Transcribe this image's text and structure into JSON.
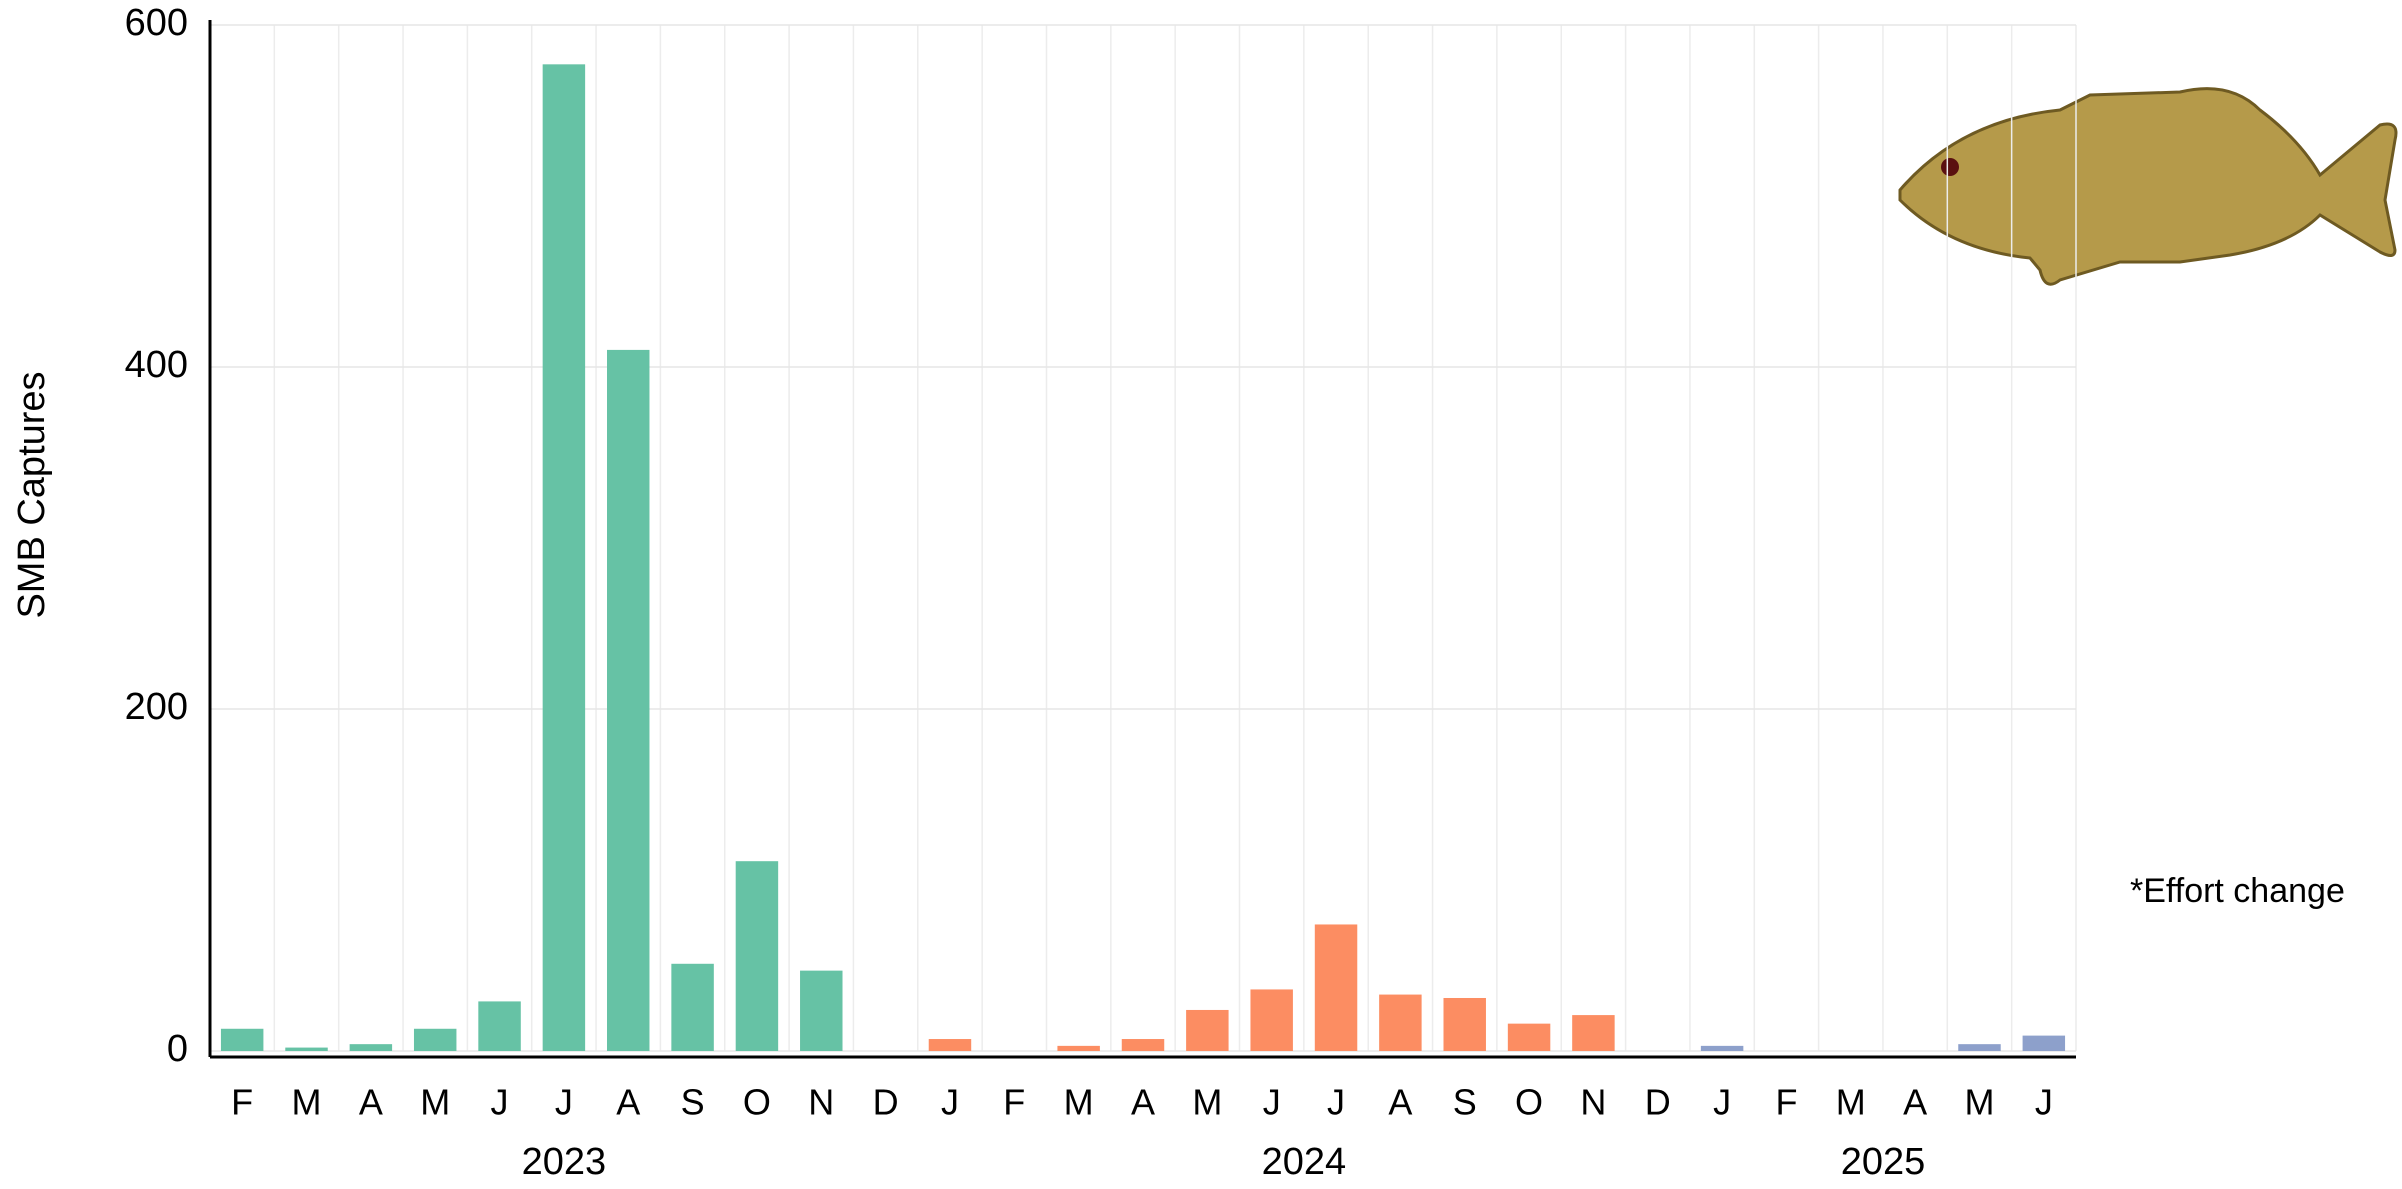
{
  "chart_data": {
    "type": "bar",
    "y_label": "SMB Captures",
    "annotation": "*Effort change",
    "categories": [
      "F",
      "M",
      "A",
      "M",
      "J",
      "J",
      "A",
      "S",
      "O",
      "N",
      "D",
      "J",
      "F",
      "M",
      "A",
      "M",
      "J",
      "J",
      "A",
      "S",
      "O",
      "N",
      "D",
      "J",
      "F",
      "M",
      "A",
      "M",
      "J"
    ],
    "series": [
      {
        "name": "2023",
        "color": "#66c2a5",
        "values": [
          13,
          2,
          4,
          13,
          29,
          577,
          410,
          51,
          111,
          47,
          0,
          null,
          null,
          null,
          null,
          null,
          null,
          null,
          null,
          null,
          null,
          null,
          null,
          null,
          null,
          null,
          null,
          null,
          null
        ]
      },
      {
        "name": "2024",
        "color": "#fc8d62",
        "values": [
          null,
          null,
          null,
          null,
          null,
          null,
          null,
          null,
          null,
          null,
          null,
          7,
          0,
          3,
          7,
          24,
          36,
          74,
          33,
          31,
          16,
          21,
          0,
          null,
          null,
          null,
          null,
          null,
          null
        ]
      },
      {
        "name": "2025",
        "color": "#8da0cb",
        "values": [
          null,
          null,
          null,
          null,
          null,
          null,
          null,
          null,
          null,
          null,
          null,
          null,
          null,
          null,
          null,
          null,
          null,
          null,
          null,
          null,
          null,
          null,
          null,
          3,
          0,
          0,
          0,
          4,
          9
        ]
      }
    ],
    "ylim": [
      0,
      600
    ],
    "yticks": [
      0,
      200,
      400,
      600
    ],
    "grid": true
  }
}
